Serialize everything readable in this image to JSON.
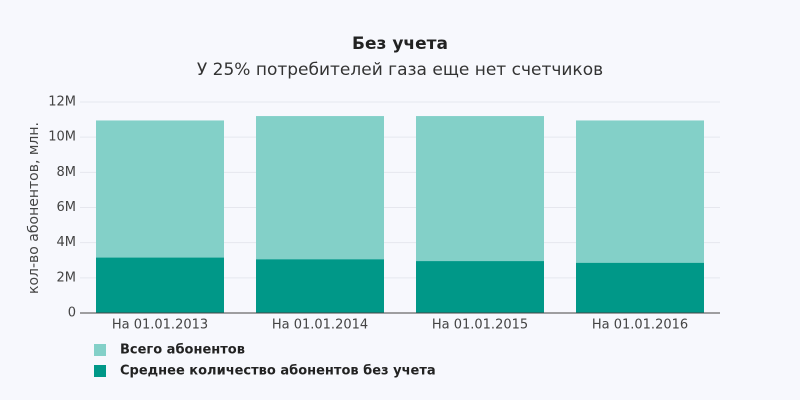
{
  "chart_data": {
    "type": "bar",
    "barmode": "overlay",
    "title": "Без учета",
    "subtitle": "У 25% потребителей газа еще нет счетчиков",
    "y_label": "кол-во абонентов, млн.",
    "categories": [
      "На 01.01.2013",
      "На 01.01.2014",
      "На 01.01.2015",
      "На 01.01.2016"
    ],
    "series": [
      {
        "name": "Всего абонентов",
        "color": "#83d0c8",
        "values": [
          10950000,
          11200000,
          11200000,
          10950000
        ]
      },
      {
        "name": "Среднее количество абонентов без учета",
        "color": "#009888",
        "values": [
          3150000,
          3050000,
          2950000,
          2850000
        ]
      }
    ],
    "ylim": [
      0,
      12000000
    ],
    "yticks": [
      0,
      {
        "value": 2000000,
        "label": "2M"
      },
      {
        "value": 4000000,
        "label": "4M"
      },
      {
        "value": 6000000,
        "label": "6M"
      },
      {
        "value": 8000000,
        "label": "8M"
      },
      {
        "value": 10000000,
        "label": "10M"
      },
      {
        "value": 12000000,
        "label": "12M"
      }
    ],
    "grid": true
  }
}
